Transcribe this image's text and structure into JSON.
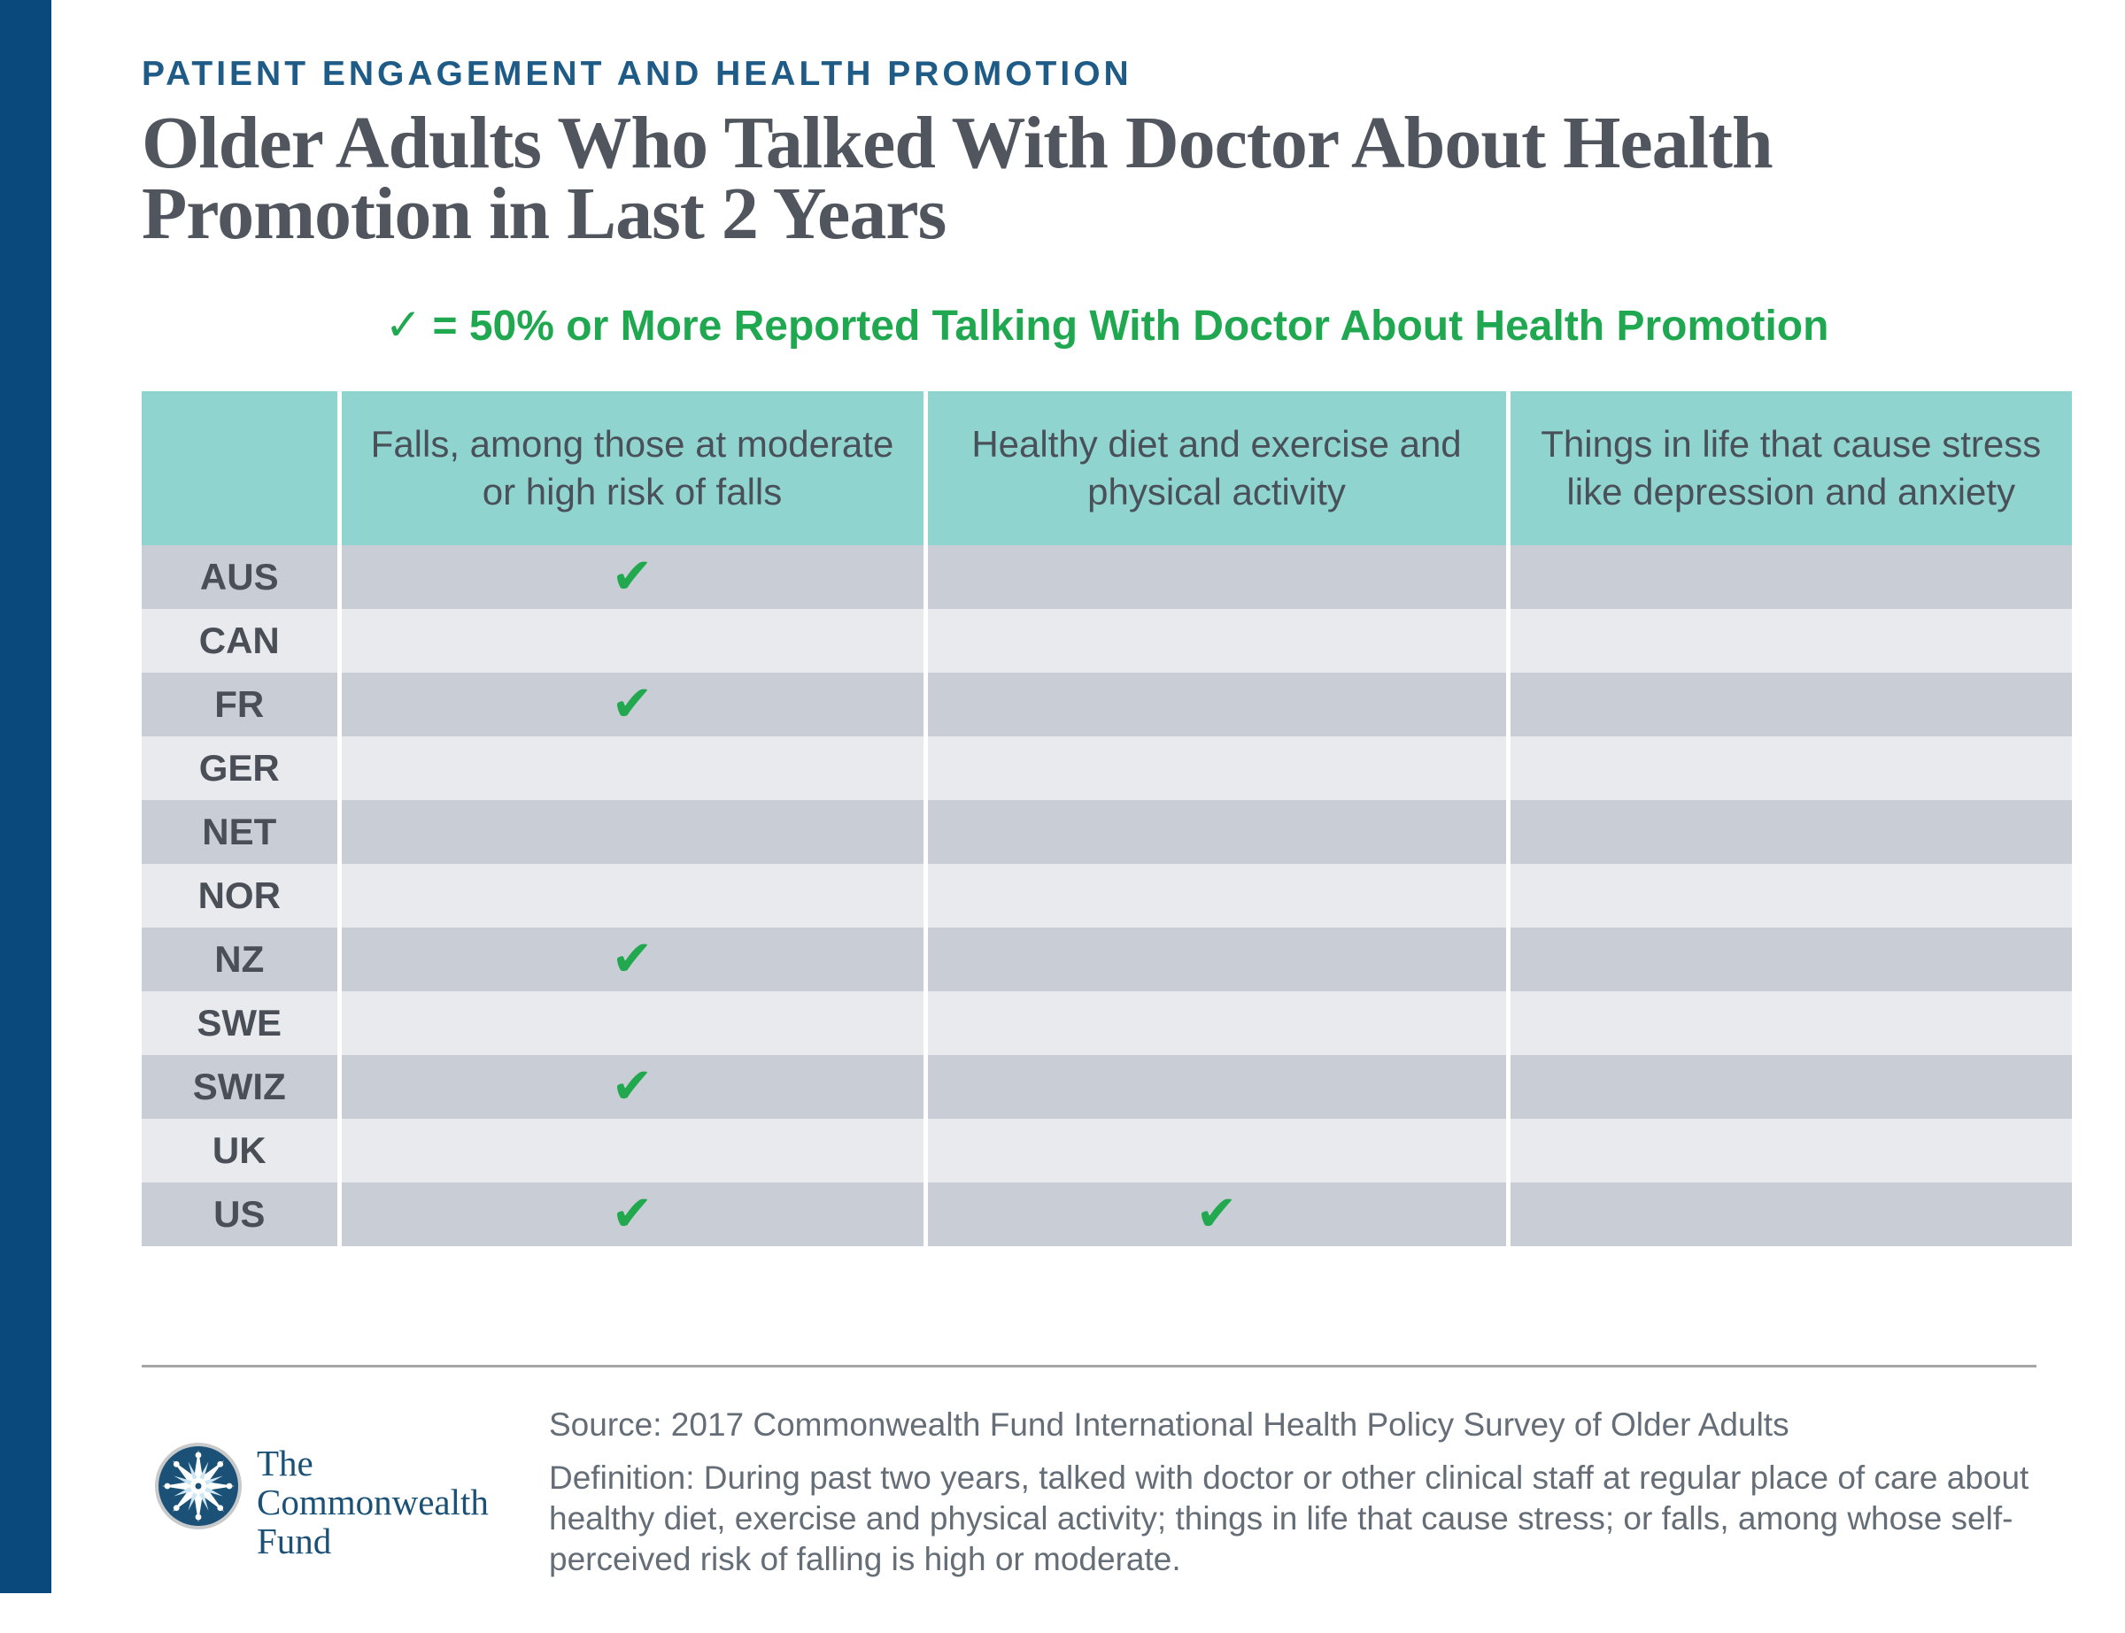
{
  "slide": {
    "eyebrow": "PATIENT ENGAGEMENT AND HEALTH PROMOTION",
    "title": "Older Adults Who Talked With Doctor About Health Promotion in Last 2 Years",
    "legend_check": "✓",
    "legend_text": "= 50% or More Reported Talking With Doctor About Health Promotion"
  },
  "chart_data": {
    "type": "table",
    "title": "Older Adults Who Talked With Doctor About Health Promotion in Last 2 Years",
    "legend": "✓ = 50% or More Reported Talking With Doctor About Health Promotion",
    "check_glyph": "✔",
    "check_meaning": "50% or more reported talking with doctor about health promotion",
    "columns": [
      "Falls, among those at moderate or high risk of falls",
      "Healthy diet and exercise and physical activity",
      "Things in life that cause stress like depression and anxiety"
    ],
    "rows": [
      {
        "country": "AUS",
        "checks": [
          true,
          false,
          false
        ]
      },
      {
        "country": "CAN",
        "checks": [
          false,
          false,
          false
        ]
      },
      {
        "country": "FR",
        "checks": [
          true,
          false,
          false
        ]
      },
      {
        "country": "GER",
        "checks": [
          false,
          false,
          false
        ]
      },
      {
        "country": "NET",
        "checks": [
          false,
          false,
          false
        ]
      },
      {
        "country": "NOR",
        "checks": [
          false,
          false,
          false
        ]
      },
      {
        "country": "NZ",
        "checks": [
          true,
          false,
          false
        ]
      },
      {
        "country": "SWE",
        "checks": [
          false,
          false,
          false
        ]
      },
      {
        "country": "SWIZ",
        "checks": [
          true,
          false,
          false
        ]
      },
      {
        "country": "UK",
        "checks": [
          false,
          false,
          false
        ]
      },
      {
        "country": "US",
        "checks": [
          true,
          true,
          false
        ]
      }
    ]
  },
  "footer": {
    "source": "Source: 2017 Commonwealth Fund International Health Policy Survey of Older Adults",
    "definition": "Definition: During past two years, talked with doctor or other clinical staff at regular place of care about healthy diet, exercise and physical activity; things in life that cause stress; or falls, among whose self-perceived risk of falling is high or moderate.",
    "logo_lines": [
      "The",
      "Commonwealth",
      "Fund"
    ]
  },
  "colors": {
    "accent_bar": "#09497B",
    "eyebrow_blue": "#1E5B86",
    "title_gray": "#51565E",
    "legend_green": "#1FA850",
    "check_green": "#22A94F",
    "header_teal": "#8FD4CE",
    "row_dark": "#C9CDD5",
    "row_light": "#E8EAED",
    "footer_text": "#656D77",
    "logo_blue": "#1B5177"
  }
}
